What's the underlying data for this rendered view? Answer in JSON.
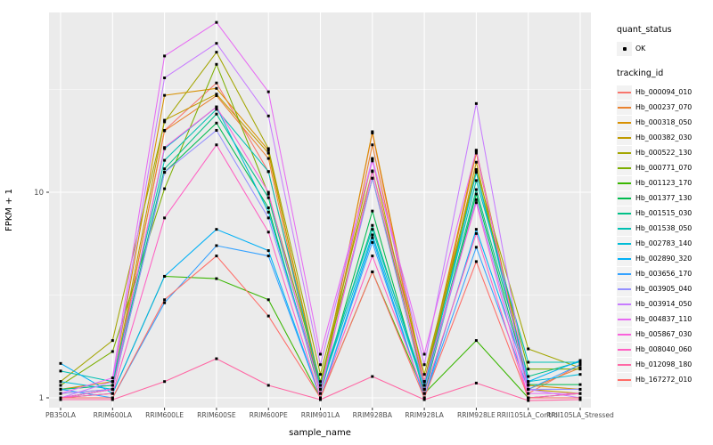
{
  "figure": {
    "ylabel": "FPKM + 1",
    "xlabel": "sample_name"
  },
  "legend": {
    "quant_status": {
      "title": "quant_status",
      "ok_label": "OK"
    },
    "tracking_id": {
      "title": "tracking_id"
    }
  },
  "colors": {
    "panel_bg": "#EBEBEB",
    "grid_major": "#FFFFFF",
    "grid_minor": "#FFFFFF",
    "axis_text": "#4D4D4D",
    "axis_title": "#000000",
    "tick_mark": "#333333",
    "point": "#000000",
    "legend_key_bg": "#F2F2F2"
  },
  "chart_data": {
    "type": "line",
    "title": "",
    "xlabel": "sample_name",
    "ylabel": "FPKM + 1",
    "yscale": "log10",
    "grid": true,
    "legend_position": "right",
    "point_shape": "small black square (quant_status = OK)",
    "ytick_labels": [
      "1",
      "10"
    ],
    "ytick_values": [
      1,
      10
    ],
    "minor_tick_values": [
      3.162,
      31.623
    ],
    "ylim": [
      0.9,
      80
    ],
    "categories": [
      "PB350LA",
      "RRIM600LA",
      "RRIM600LE",
      "RRIM600SE",
      "RRIM600PE",
      "RRIM901LA",
      "RRIM928BA",
      "RRIM928LA",
      "RRIM928LE",
      "RRII105LA_Control",
      "RRII105LA_Stressed"
    ],
    "series": [
      {
        "name": "Hb_000094_010",
        "color": "#F8766D",
        "values": [
          1.0,
          1.1,
          20.0,
          34.0,
          12.6,
          1.1,
          19.4,
          1.1,
          15.8,
          1.05,
          1.45
        ]
      },
      {
        "name": "Hb_000237_070",
        "color": "#EA8331",
        "values": [
          1.05,
          1.1,
          19.9,
          29.5,
          14.6,
          1.05,
          17.0,
          1.15,
          15.5,
          1.1,
          1.4
        ]
      },
      {
        "name": "Hb_000318_050",
        "color": "#D89000",
        "values": [
          1.1,
          1.2,
          29.6,
          32.0,
          16.0,
          1.1,
          19.7,
          1.2,
          16.0,
          1.15,
          1.1
        ]
      },
      {
        "name": "Hb_000382_030",
        "color": "#C09B00",
        "values": [
          1.1,
          1.15,
          22.4,
          30.0,
          15.5,
          1.15,
          14.5,
          1.1,
          14.0,
          1.1,
          1.05
        ]
      },
      {
        "name": "Hb_000522_130",
        "color": "#A3A500",
        "values": [
          1.2,
          1.9,
          22.0,
          48.0,
          16.3,
          1.3,
          12.7,
          1.3,
          12.9,
          1.73,
          1.4
        ]
      },
      {
        "name": "Hb_000771_070",
        "color": "#7CAE00",
        "values": [
          1.15,
          1.68,
          10.4,
          41.9,
          9.8,
          1.2,
          11.7,
          1.2,
          12.5,
          1.38,
          1.38
        ]
      },
      {
        "name": "Hb_001123_170",
        "color": "#39B600",
        "values": [
          1.0,
          1.05,
          3.9,
          3.8,
          3.0,
          1.0,
          4.1,
          1.05,
          1.9,
          1.0,
          1.05
        ]
      },
      {
        "name": "Hb_001377_130",
        "color": "#00BB4E",
        "values": [
          1.0,
          1.1,
          12.5,
          21.7,
          8.4,
          1.05,
          8.1,
          1.05,
          9.8,
          1.16,
          1.16
        ]
      },
      {
        "name": "Hb_001515_030",
        "color": "#00C087",
        "values": [
          1.1,
          1.15,
          13.0,
          24.0,
          9.4,
          1.1,
          6.9,
          1.1,
          10.3,
          1.27,
          1.5
        ]
      },
      {
        "name": "Hb_001538_050",
        "color": "#00C0B2",
        "values": [
          1.35,
          1.2,
          14.3,
          25.3,
          12.6,
          1.15,
          6.6,
          1.15,
          11.4,
          1.49,
          1.49
        ]
      },
      {
        "name": "Hb_002783_140",
        "color": "#00BCD6",
        "values": [
          1.2,
          1.1,
          16.3,
          26.0,
          8.0,
          1.1,
          6.2,
          1.1,
          12.5,
          1.2,
          1.3
        ]
      },
      {
        "name": "Hb_002890_320",
        "color": "#00B0F6",
        "values": [
          1.47,
          1.05,
          3.9,
          6.6,
          5.2,
          1.0,
          6.0,
          1.0,
          6.6,
          1.2,
          1.52
        ]
      },
      {
        "name": "Hb_003656_170",
        "color": "#35A2FF",
        "values": [
          1.1,
          1.0,
          2.9,
          5.5,
          4.9,
          1.0,
          5.7,
          1.0,
          5.4,
          1.1,
          1.45
        ]
      },
      {
        "name": "Hb_003905_040",
        "color": "#9590FF",
        "values": [
          1.05,
          1.1,
          12.5,
          20.0,
          7.5,
          1.1,
          11.7,
          1.1,
          9.2,
          1.1,
          1.1
        ]
      },
      {
        "name": "Hb_003914_050",
        "color": "#C77CFF",
        "values": [
          1.0,
          1.2,
          36.0,
          53.0,
          23.5,
          1.45,
          14.6,
          1.45,
          27.0,
          1.1,
          1.0
        ]
      },
      {
        "name": "Hb_004837_110",
        "color": "#E76BF3",
        "values": [
          1.05,
          1.25,
          46.0,
          67.0,
          30.8,
          1.63,
          14.2,
          1.63,
          16.0,
          1.05,
          1.05
        ]
      },
      {
        "name": "Hb_005867_030",
        "color": "#FA62DB",
        "values": [
          1.0,
          1.1,
          16.5,
          26.0,
          10.0,
          1.05,
          12.6,
          1.2,
          8.9,
          1.0,
          1.0
        ]
      },
      {
        "name": "Hb_008040_060",
        "color": "#FF61C3",
        "values": [
          1.0,
          1.05,
          7.5,
          17.0,
          6.4,
          1.0,
          4.9,
          1.05,
          6.3,
          1.0,
          1.05
        ]
      },
      {
        "name": "Hb_012098_180",
        "color": "#FF67A4",
        "values": [
          0.98,
          0.98,
          1.2,
          1.55,
          1.15,
          0.98,
          1.27,
          0.98,
          1.18,
          0.97,
          0.98
        ]
      },
      {
        "name": "Hb_167272_010",
        "color": "#FF6C67",
        "values": [
          1.0,
          1.0,
          3.0,
          4.9,
          2.5,
          1.0,
          4.1,
          1.0,
          4.6,
          1.0,
          1.0
        ]
      }
    ]
  }
}
